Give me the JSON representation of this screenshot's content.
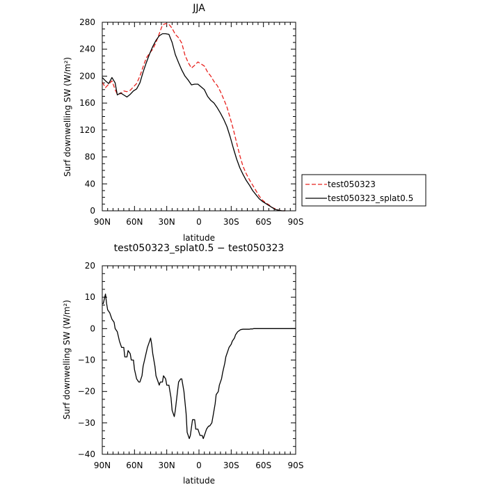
{
  "chart_data": [
    {
      "type": "line",
      "title": "JJA",
      "xlabel": "latitude",
      "ylabel": "Surf downwelling SW  (W/m²)",
      "xlim": [
        90,
        -90
      ],
      "ylim": [
        0,
        280
      ],
      "xticks": [
        90,
        60,
        30,
        0,
        -30,
        -60,
        -90
      ],
      "xtick_labels": [
        "90N",
        "60N",
        "30N",
        "0",
        "30S",
        "60S",
        "90S"
      ],
      "yticks": [
        0,
        40,
        80,
        120,
        160,
        200,
        240,
        280
      ],
      "ytick_labels": [
        "0",
        "40",
        "80",
        "120",
        "160",
        "200",
        "240",
        "280"
      ],
      "legend": "right",
      "series": [
        {
          "name": "test050323",
          "color": "#e8201c",
          "dash": "dashed",
          "x": [
            90,
            87,
            84,
            81,
            78,
            76,
            73,
            70,
            67,
            64,
            61,
            58,
            55,
            52,
            49,
            46,
            43,
            40,
            37,
            34,
            31,
            28,
            25,
            22,
            19,
            16,
            13,
            10,
            7,
            4,
            1,
            -2,
            -5,
            -8,
            -11,
            -14,
            -17,
            -20,
            -23,
            -26,
            -29,
            -32,
            -35,
            -38,
            -41,
            -44,
            -47,
            -50,
            -53,
            -56,
            -59,
            -62,
            -65,
            -68,
            -71,
            -74,
            -77,
            -80
          ],
          "y": [
            191,
            183,
            188,
            193,
            180,
            173,
            174,
            178,
            177,
            179,
            184,
            189,
            200,
            214,
            227,
            234,
            240,
            250,
            263,
            276,
            278,
            277,
            271,
            262,
            257,
            249,
            231,
            220,
            212,
            216,
            221,
            218,
            215,
            206,
            200,
            192,
            186,
            177,
            166,
            154,
            138,
            121,
            101,
            82,
            66,
            55,
            46,
            38,
            30,
            22,
            16,
            12,
            9,
            5,
            3,
            1,
            0,
            0
          ]
        },
        {
          "name": "test050323_splat0.5",
          "color": "#000000",
          "dash": "solid",
          "x": [
            90,
            87,
            84,
            81,
            78,
            76,
            73,
            70,
            67,
            64,
            61,
            58,
            55,
            52,
            49,
            46,
            43,
            40,
            37,
            34,
            31,
            28,
            25,
            22,
            19,
            16,
            13,
            10,
            7,
            4,
            1,
            -2,
            -5,
            -8,
            -11,
            -14,
            -17,
            -20,
            -23,
            -26,
            -29,
            -32,
            -35,
            -38,
            -41,
            -44,
            -47,
            -50,
            -53,
            -56,
            -59,
            -62,
            -65,
            -68,
            -71,
            -74,
            -77,
            -80
          ],
          "y": [
            198,
            193,
            189,
            198,
            190,
            172,
            175,
            172,
            169,
            173,
            178,
            181,
            190,
            206,
            220,
            233,
            244,
            253,
            260,
            263,
            263,
            262,
            250,
            232,
            220,
            209,
            200,
            194,
            187,
            188,
            188,
            184,
            180,
            170,
            164,
            160,
            153,
            145,
            136,
            125,
            110,
            93,
            77,
            64,
            54,
            45,
            38,
            30,
            24,
            18,
            14,
            11,
            8,
            5,
            2,
            1,
            0,
            0
          ]
        }
      ]
    },
    {
      "type": "line",
      "title": "test050323_splat0.5 − test050323",
      "xlabel": "latitude",
      "ylabel": "Surf downwelling SW  (W/m²)",
      "xlim": [
        90,
        -90
      ],
      "ylim": [
        -40,
        20
      ],
      "xticks": [
        90,
        60,
        30,
        0,
        -30,
        -60,
        -90
      ],
      "xtick_labels": [
        "90N",
        "60N",
        "30N",
        "0",
        "30S",
        "60S",
        "90S"
      ],
      "yticks": [
        -40,
        -30,
        -20,
        -10,
        0,
        10,
        20
      ],
      "ytick_labels": [
        "−40",
        "−30",
        "−20",
        "−10",
        "0",
        "10",
        "20"
      ],
      "series": [
        {
          "color": "#000000",
          "dash": "solid",
          "x": [
            90,
            89,
            87,
            86,
            85,
            83,
            81,
            79,
            78,
            76,
            74,
            72,
            70,
            69,
            67,
            66,
            64,
            63,
            61,
            60,
            58,
            56,
            55,
            53,
            52,
            50,
            48,
            46,
            45,
            44,
            43,
            41,
            40,
            39,
            37,
            36,
            34,
            33,
            31,
            30,
            28,
            26,
            25,
            23,
            22,
            20,
            19,
            17,
            16,
            14,
            12,
            11,
            9,
            8,
            6,
            4,
            3,
            1,
            0,
            -1,
            -3,
            -4,
            -6,
            -7,
            -9,
            -10,
            -12,
            -13,
            -15,
            -16,
            -18,
            -19,
            -21,
            -22,
            -24,
            -25,
            -27,
            -28,
            -30,
            -31,
            -33,
            -34,
            -36,
            -38,
            -39,
            -41,
            -42,
            -44,
            -45,
            -47,
            -48,
            -50,
            -51,
            -53,
            -55,
            -57,
            -60,
            -63,
            -66,
            -70,
            -75,
            -80,
            -85,
            -90
          ],
          "y": [
            8,
            8,
            11,
            8,
            6,
            5,
            3,
            2,
            0,
            -1,
            -4,
            -6,
            -6,
            -9,
            -9,
            -7,
            -8,
            -10,
            -10,
            -13,
            -16,
            -17,
            -17,
            -15,
            -12,
            -9,
            -6,
            -4,
            -3,
            -5,
            -8,
            -12,
            -15,
            -16,
            -18,
            -17,
            -17,
            -15,
            -16,
            -18,
            -18,
            -22,
            -26,
            -28,
            -26,
            -20,
            -17,
            -16,
            -16,
            -20,
            -27,
            -33,
            -35,
            -34,
            -29,
            -29,
            -32,
            -32,
            -33,
            -34,
            -34,
            -35,
            -33,
            -32,
            -31,
            -31,
            -30,
            -28,
            -24,
            -21,
            -20,
            -18,
            -16,
            -14,
            -11,
            -9,
            -7,
            -6,
            -5,
            -4,
            -3,
            -2,
            -1,
            -0.5,
            -0.3,
            -0.2,
            -0.2,
            -0.2,
            -0.2,
            -0.2,
            -0.1,
            -0.1,
            0,
            0,
            0,
            0,
            0,
            0,
            0,
            0,
            0,
            0,
            0,
            0
          ]
        }
      ]
    }
  ]
}
